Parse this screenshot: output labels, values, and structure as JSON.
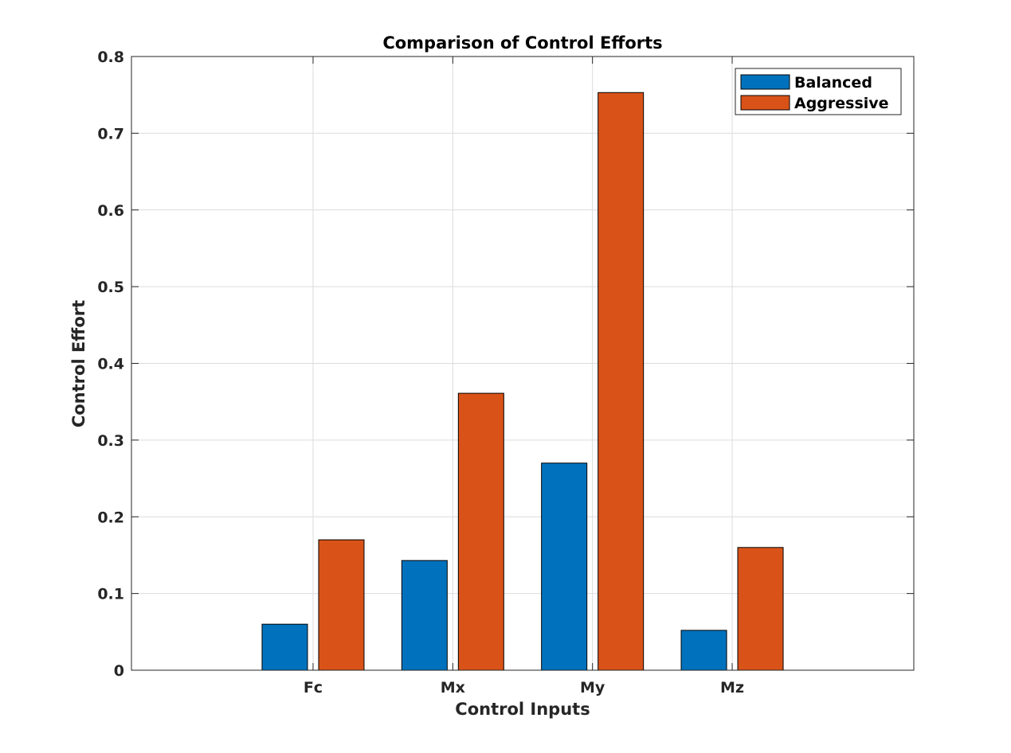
{
  "chart_data": {
    "type": "bar",
    "title": "Comparison of Control Efforts",
    "xlabel": "Control Inputs",
    "ylabel": "Control Effort",
    "categories": [
      "Fc",
      "Mx",
      "My",
      "Mz"
    ],
    "series": [
      {
        "name": "Balanced",
        "color": "#0072BD",
        "values": [
          0.06,
          0.143,
          0.27,
          0.052
        ]
      },
      {
        "name": "Aggressive",
        "color": "#D95319",
        "values": [
          0.17,
          0.361,
          0.753,
          0.16
        ]
      }
    ],
    "ylim": [
      0,
      0.8
    ],
    "yticks": [
      0,
      0.1,
      0.2,
      0.3,
      0.4,
      0.5,
      0.6,
      0.7,
      0.8
    ],
    "ytick_labels": [
      "0",
      "0.1",
      "0.2",
      "0.3",
      "0.4",
      "0.5",
      "0.6",
      "0.7",
      "0.8"
    ],
    "grid": true,
    "legend_position": "top-right"
  }
}
